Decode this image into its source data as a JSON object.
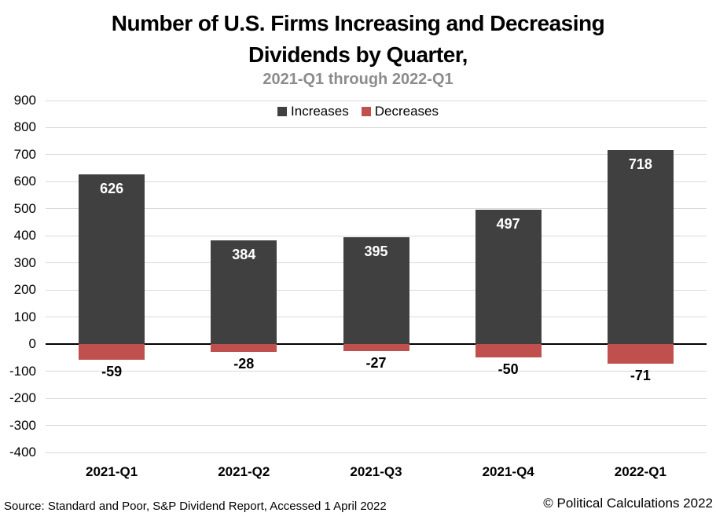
{
  "chart_data": {
    "type": "bar",
    "stacked": true,
    "title": "Number of U.S. Firms Increasing and Decreasing Dividends by Quarter,",
    "title_line1": "Number of U.S. Firms Increasing and Decreasing",
    "title_line2": "Dividends by Quarter,",
    "subtitle": "2021-Q1 through 2022-Q1",
    "categories": [
      "2021-Q1",
      "2021-Q2",
      "2021-Q3",
      "2021-Q4",
      "2022-Q1"
    ],
    "series": [
      {
        "name": "Increases",
        "color": "#404040",
        "values": [
          626,
          384,
          395,
          497,
          718
        ]
      },
      {
        "name": "Decreases",
        "color": "#C0504D",
        "values": [
          -59,
          -28,
          -27,
          -50,
          -71
        ]
      }
    ],
    "xlabel": "",
    "ylabel": "",
    "ylim": [
      -400,
      900
    ],
    "yticks": [
      900,
      800,
      700,
      600,
      500,
      400,
      300,
      200,
      100,
      0,
      -100,
      -200,
      -300,
      -400
    ],
    "grid": true,
    "gridline_color": "#D9D9D9",
    "zero_line_color": "#000000",
    "legend_position": "top-center",
    "value_label_color_positive": "#FFFFFF",
    "value_label_color_negative": "#000000"
  },
  "footer": {
    "source": "Source: Standard and Poor, S&P Dividend Report, Accessed 1 April 2022",
    "copyright": "© Political Calculations 2022"
  }
}
